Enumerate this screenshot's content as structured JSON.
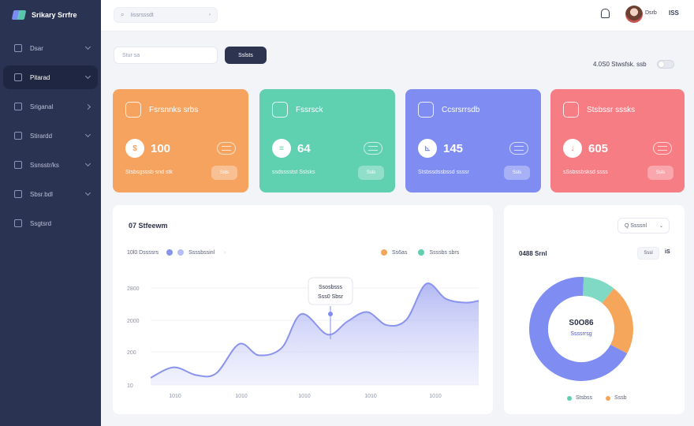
{
  "app": {
    "brand": "Srikary Srrfre"
  },
  "colors": {
    "orange": "#f7a360",
    "teal": "#5fd0b0",
    "indigo": "#7f8df2",
    "coral": "#f77d85",
    "sidebar": "#2b3352"
  },
  "sidebar": {
    "items": [
      {
        "label": "Dsar",
        "icon": "dashboard-icon",
        "chevron": true,
        "active": false
      },
      {
        "label": "Pitarad",
        "icon": "grid-icon",
        "chevron": true,
        "active": true
      },
      {
        "label": "Sriganal",
        "icon": "chart-icon",
        "chevron": true,
        "active": false
      },
      {
        "label": "Stirardd",
        "icon": "box-icon",
        "chevron": true,
        "active": false
      },
      {
        "label": "Ssnsstr/ks",
        "icon": "report-icon",
        "chevron": true,
        "active": false
      },
      {
        "label": "Sbsr.bdl",
        "icon": "file-icon",
        "chevron": true,
        "active": false
      },
      {
        "label": "Ssgtsrd",
        "icon": "settings-icon",
        "chevron": false,
        "active": false
      }
    ]
  },
  "topbar": {
    "search_text": "Iissrsssdt",
    "user_name": "Dsrb",
    "user_code": "ISS"
  },
  "filters": {
    "input_value": "Stur sa",
    "button_label": "Sslsts",
    "toggle_label": "4.0S0 Stwsfsk. ssb"
  },
  "cards": [
    {
      "title": "Fsrsnnks srbs",
      "value": "100",
      "badge": "$",
      "footer": "Stsbsgsssb snd stk",
      "button": "Ssls"
    },
    {
      "title": "Fssrsck",
      "value": "64",
      "badge": "≡",
      "footer": "ssdsssstst Sslsks",
      "button": "Ssls"
    },
    {
      "title": "Ccsrsrrsdb",
      "value": "145",
      "badge": "⊾",
      "footer": "Stsbssdssbssd ssssr",
      "button": "Ssls"
    },
    {
      "title": "Stsbssr sssks",
      "value": "605",
      "badge": "↓",
      "footer": "sSsbssbsksd ssss",
      "button": "Ssls"
    }
  ],
  "chart": {
    "title": "07 Stfeewm",
    "legend_left_a": "10l0 Dssssrs",
    "legend_left_b": "Ssssbssinl",
    "legend_right_a": "Ss6as",
    "legend_right_b": "Ssssbs sbrs",
    "tooltip_line1": "Ssosbsss",
    "tooltip_line2": "Sss0 Sbsr"
  },
  "chart_data": {
    "type": "area",
    "categories": [
      "1010",
      "1010",
      "1010",
      "1010",
      "1010"
    ],
    "y_ticks": [
      "2800",
      "2000",
      "200",
      "10"
    ],
    "ylim": [
      10,
      2800
    ],
    "x": [
      0,
      0.07,
      0.14,
      0.2,
      0.27,
      0.33,
      0.4,
      0.46,
      0.54,
      0.6,
      0.66,
      0.72,
      0.78,
      0.84,
      0.9,
      0.96,
      1.0
    ],
    "values": [
      200,
      480,
      270,
      320,
      1100,
      800,
      1000,
      1900,
      1350,
      1700,
      1950,
      1600,
      1750,
      2700,
      2300,
      2200,
      2250
    ],
    "series": [
      {
        "name": "Ssssbssinl",
        "color": "#8a93ee"
      }
    ],
    "grid": true
  },
  "donut": {
    "select_label": "Q Ssssnl",
    "label": "0488 Srnl",
    "button": "Sssl",
    "button_extra": "iS",
    "center_value": "S0O86",
    "center_sub": "Ssssrrsg",
    "legend_a": "Stsbss",
    "legend_b": "Sssb"
  },
  "donut_data": {
    "type": "pie",
    "slices": [
      {
        "value": 10,
        "color": "#7fd9c4"
      },
      {
        "value": 22,
        "color": "#f6a65a"
      },
      {
        "value": 68,
        "color": "#7f8df2"
      }
    ]
  }
}
